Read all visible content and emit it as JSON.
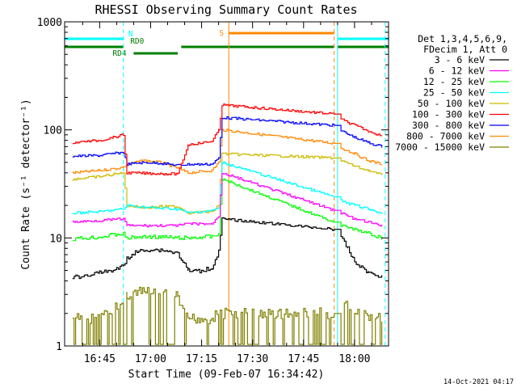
{
  "chart_data": {
    "type": "line",
    "title": "RHESSI Observing Summary Count Rates",
    "xlabel": "Start Time (09-Feb-07 16:34:42)",
    "ylabel": "Count Rate (s⁻¹ detector⁻¹)",
    "y_scale": "log",
    "ylim": [
      1,
      1000
    ],
    "xlim": [
      "16:34:42",
      "18:10:00"
    ],
    "x_ticks": [
      "16:45",
      "17:00",
      "17:15",
      "17:30",
      "17:45",
      "18:00"
    ],
    "y_ticks": [
      "1",
      "10",
      "100",
      "1000"
    ],
    "legend_position": "right",
    "legend_header": [
      "Det 1,3,4,5,6,9,",
      "FDecim 1, Att 0"
    ],
    "series": [
      {
        "name": "3 - 6 keV",
        "color": "#000000",
        "x": [
          "16:37",
          "16:41",
          "16:45",
          "16:49",
          "16:52",
          "16:53",
          "16:56",
          "17:00",
          "17:04",
          "17:08",
          "17:11",
          "17:14",
          "17:18",
          "17:20",
          "17:21",
          "17:54",
          "17:56",
          "17:58",
          "18:00",
          "18:04",
          "18:08"
        ],
        "y": [
          4.3,
          4.5,
          4.8,
          5.0,
          5.5,
          6.5,
          7.5,
          7.8,
          7.7,
          7.2,
          5.0,
          4.9,
          5.3,
          7.5,
          15,
          12,
          10,
          8,
          6,
          4.8,
          4.4
        ]
      },
      {
        "name": "6 - 12 keV",
        "color": "#ff00ff",
        "x": [
          "16:37",
          "16:45",
          "16:52",
          "16:53",
          "17:00",
          "17:08",
          "17:11",
          "17:18",
          "17:20",
          "17:21",
          "17:54",
          "17:56",
          "18:00",
          "18:04",
          "18:08"
        ],
        "y": [
          14,
          14.5,
          15,
          13,
          13,
          13,
          13.5,
          13.5,
          16,
          40,
          18,
          17,
          15,
          14,
          13
        ]
      },
      {
        "name": "12 - 25 keV",
        "color": "#00ff00",
        "x": [
          "16:37",
          "16:45",
          "16:52",
          "16:53",
          "17:00",
          "17:08",
          "17:11",
          "17:18",
          "17:20",
          "17:21",
          "17:54",
          "17:56",
          "18:00",
          "18:04",
          "18:08"
        ],
        "y": [
          9.8,
          10.2,
          11,
          10,
          10.3,
          10,
          10,
          10.3,
          11,
          35,
          14,
          13,
          12,
          11,
          10
        ]
      },
      {
        "name": "25 - 50 keV",
        "color": "#00ffff",
        "x": [
          "16:37",
          "16:45",
          "16:52",
          "16:53",
          "17:00",
          "17:08",
          "17:11",
          "17:18",
          "17:20",
          "17:21",
          "17:54",
          "17:56",
          "18:00",
          "18:04",
          "18:08"
        ],
        "y": [
          17,
          17.5,
          18.5,
          20,
          19,
          18.5,
          17,
          18,
          19,
          50,
          24,
          22,
          20,
          18.5,
          17
        ]
      },
      {
        "name": "50 - 100 keV",
        "color": "#ccbb00",
        "x": [
          "16:37",
          "16:45",
          "16:52",
          "16:53",
          "16:58",
          "17:03",
          "17:08",
          "17:11",
          "17:18",
          "17:20",
          "17:21",
          "17:54",
          "17:56",
          "18:00",
          "18:04",
          "18:08"
        ],
        "y": [
          35,
          37,
          40,
          20,
          19,
          19.5,
          19.5,
          17,
          17.5,
          20,
          60,
          55,
          52,
          46,
          42,
          38
        ]
      },
      {
        "name": "100 - 300 keV",
        "color": "#ff0000",
        "x": [
          "16:37",
          "16:41",
          "16:45",
          "16:49",
          "16:52",
          "16:53",
          "17:08",
          "17:11",
          "17:14",
          "17:18",
          "17:20",
          "17:21",
          "17:54",
          "17:56",
          "18:00",
          "18:04",
          "18:08"
        ],
        "y": [
          76,
          78,
          80,
          85,
          90,
          40,
          39,
          73,
          75,
          78,
          100,
          170,
          140,
          125,
          110,
          98,
          88
        ]
      },
      {
        "name": "300 - 800 keV",
        "color": "#0000ff",
        "x": [
          "16:37",
          "16:45",
          "16:52",
          "16:53",
          "16:58",
          "17:03",
          "17:08",
          "17:11",
          "17:18",
          "17:20",
          "17:21",
          "17:54",
          "17:56",
          "18:00",
          "18:04",
          "18:08"
        ],
        "y": [
          57,
          58,
          62,
          48,
          50,
          49,
          47,
          48,
          48,
          55,
          130,
          110,
          98,
          85,
          76,
          70
        ]
      },
      {
        "name": "800 - 7000 keV",
        "color": "#ff8800",
        "x": [
          "16:37",
          "16:45",
          "16:52",
          "16:53",
          "16:58",
          "17:03",
          "17:08",
          "17:11",
          "17:18",
          "17:20",
          "17:21",
          "17:54",
          "17:56",
          "18:00",
          "18:04",
          "18:08"
        ],
        "y": [
          40,
          42,
          45,
          48,
          52,
          50,
          44,
          40,
          42,
          50,
          100,
          75,
          68,
          60,
          52,
          48
        ]
      },
      {
        "name": "7000 - 15000 keV",
        "color": "#808000",
        "x": [
          "16:37",
          "16:45",
          "16:52",
          "16:53",
          "17:00",
          "17:08",
          "17:10",
          "17:18",
          "17:20",
          "17:54",
          "17:56",
          "18:00",
          "18:08"
        ],
        "y": [
          1.8,
          1.8,
          2.5,
          3.0,
          3.2,
          2.8,
          1.8,
          1.8,
          2.0,
          2.0,
          2.8,
          2.0,
          1.8
        ]
      }
    ],
    "state_bars": [
      {
        "label": "N",
        "color": "#00ffff",
        "segments": [
          [
            "16:34:42",
            "16:52"
          ],
          [
            "17:55",
            "18:10"
          ]
        ]
      },
      {
        "label": "S",
        "color": "#ff8800",
        "segments": [
          [
            "17:23",
            "17:54"
          ]
        ]
      },
      {
        "label": "RD0",
        "color": "#008000",
        "segments": [
          [
            "16:34:42",
            "16:52"
          ],
          [
            "17:55",
            "18:10"
          ]
        ]
      },
      {
        "label": "RD4",
        "color": "#008000",
        "segments": [
          [
            "16:55",
            "17:08"
          ]
        ]
      },
      {
        "label": "",
        "color": "#008000",
        "segments": [
          [
            "17:09",
            "17:54"
          ]
        ]
      }
    ],
    "vertical_markers": [
      {
        "x": "16:52",
        "color": "#00ffff",
        "style": "dashed"
      },
      {
        "x": "17:55",
        "color": "#00ffff",
        "style": "solid"
      },
      {
        "x": "18:09",
        "color": "#00ffff",
        "style": "dashed"
      },
      {
        "x": "17:23",
        "color": "#ff8800",
        "style": "solid"
      },
      {
        "x": "17:54",
        "color": "#ff8800",
        "style": "dashed"
      }
    ]
  },
  "footer_timestamp": "14-Oct-2021 04:17"
}
